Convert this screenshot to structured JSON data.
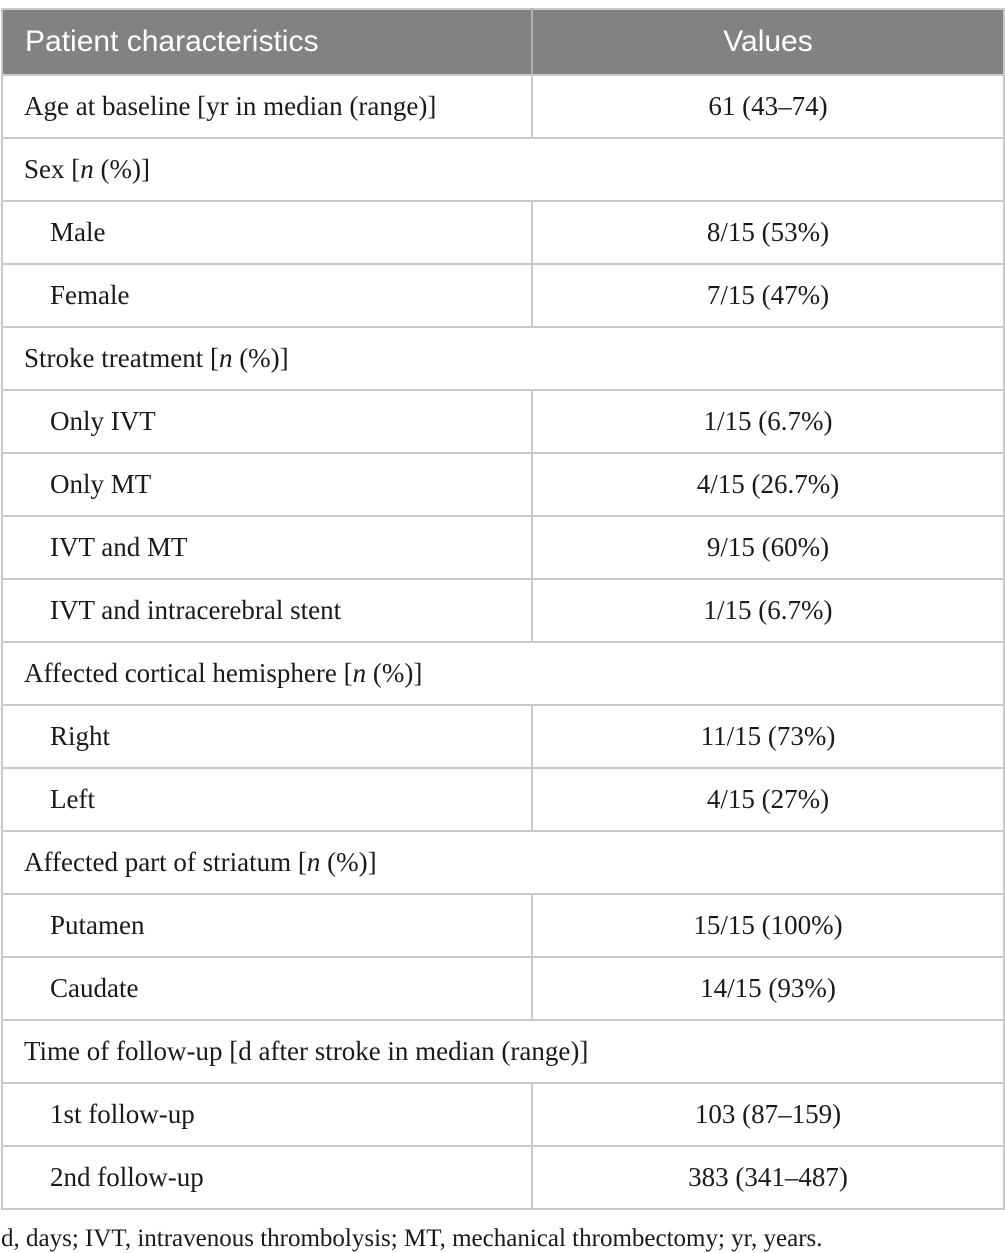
{
  "table": {
    "header": {
      "col1": "Patient characteristics",
      "col2": "Values"
    },
    "rows": [
      {
        "type": "data",
        "indent": false,
        "label": "Age at baseline [yr in median (range)]",
        "value": "61 (43–74)"
      },
      {
        "type": "section",
        "label": "Sex [n (%)]"
      },
      {
        "type": "data",
        "indent": true,
        "label": "Male",
        "value": "8/15 (53%)"
      },
      {
        "type": "data",
        "indent": true,
        "label": "Female",
        "value": "7/15 (47%)"
      },
      {
        "type": "section",
        "label": "Stroke treatment [n (%)]"
      },
      {
        "type": "data",
        "indent": true,
        "label": "Only IVT",
        "value": "1/15 (6.7%)"
      },
      {
        "type": "data",
        "indent": true,
        "label": "Only MT",
        "value": "4/15 (26.7%)"
      },
      {
        "type": "data",
        "indent": true,
        "label": "IVT and MT",
        "value": "9/15 (60%)"
      },
      {
        "type": "data",
        "indent": true,
        "label": "IVT and intracerebral stent",
        "value": "1/15 (6.7%)"
      },
      {
        "type": "section",
        "label": "Affected cortical hemisphere [n (%)]"
      },
      {
        "type": "data",
        "indent": true,
        "label": "Right",
        "value": "11/15 (73%)"
      },
      {
        "type": "data",
        "indent": true,
        "label": "Left",
        "value": "4/15 (27%)"
      },
      {
        "type": "section",
        "label": "Affected part of striatum [n (%)]"
      },
      {
        "type": "data",
        "indent": true,
        "label": "Putamen",
        "value": "15/15 (100%)"
      },
      {
        "type": "data",
        "indent": true,
        "label": "Caudate",
        "value": "14/15 (93%)"
      },
      {
        "type": "section",
        "label": "Time of follow-up [d after stroke in median (range)]"
      },
      {
        "type": "data",
        "indent": true,
        "label": "1st follow-up",
        "value": "103 (87–159)"
      },
      {
        "type": "data",
        "indent": true,
        "label": "2nd follow-up",
        "value": "383 (341–487)"
      }
    ],
    "footnote": "d, days; IVT, intravenous thrombolysis; MT, mechanical thrombectomy; yr, years.",
    "colors": {
      "header_bg": "#828282",
      "header_text": "#ffffff",
      "border": "#c9c9c9",
      "body_text": "#1a1a1a"
    }
  }
}
